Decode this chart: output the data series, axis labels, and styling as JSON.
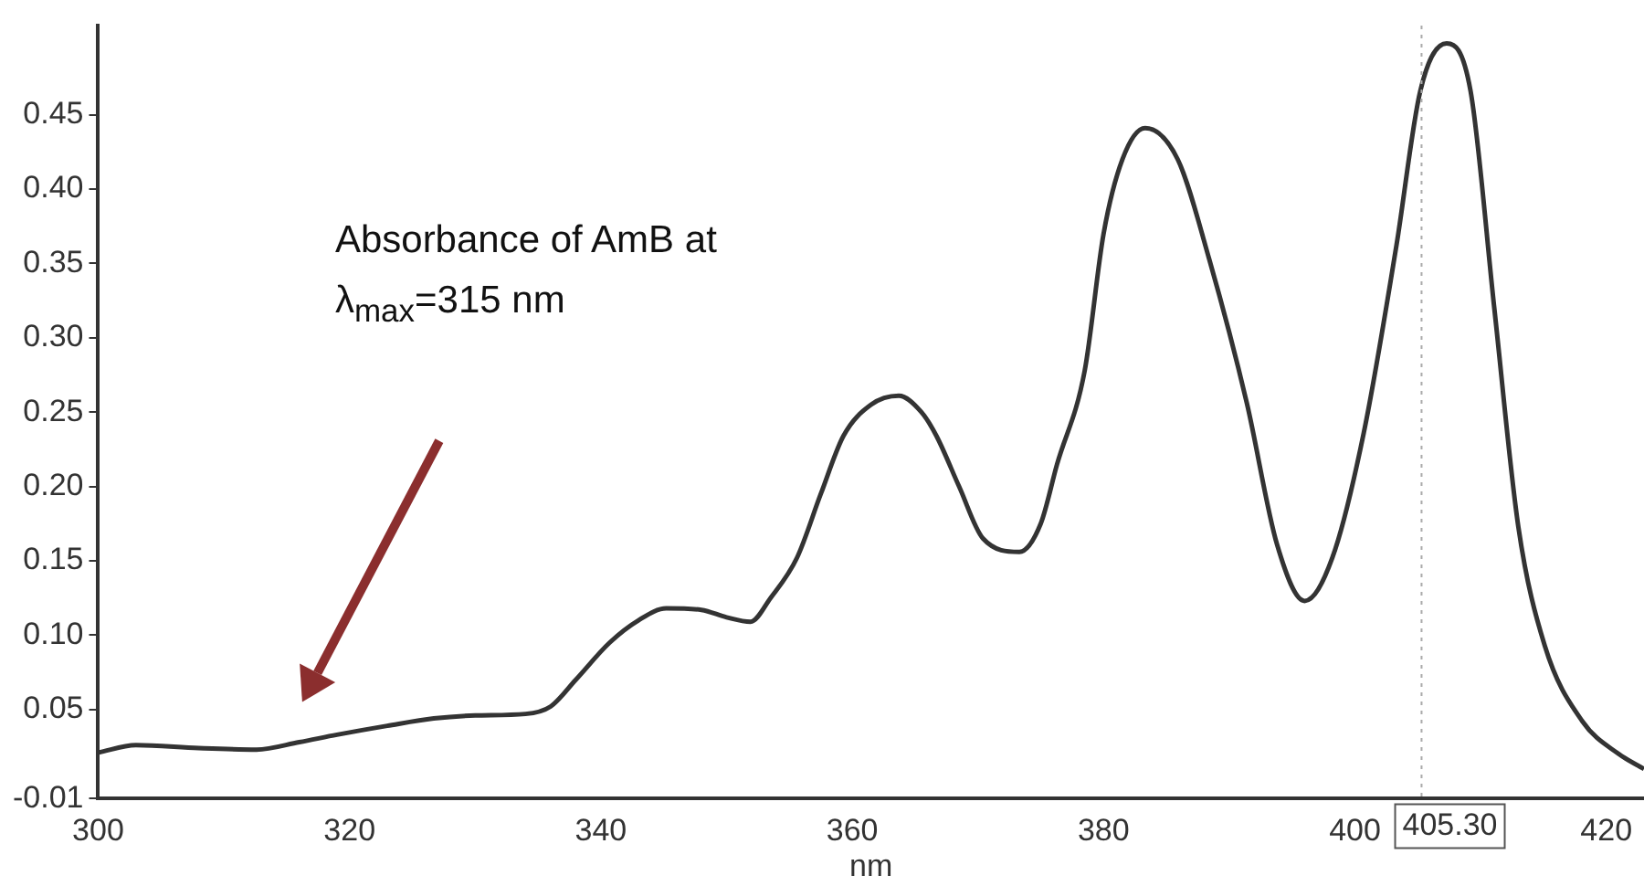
{
  "chart_data": {
    "type": "line",
    "xlabel": "nm",
    "series": [
      {
        "color": "#333333",
        "x": [
          300,
          303,
          308,
          312.6,
          316,
          319,
          323,
          326.7,
          330,
          334,
          336,
          338,
          340.7,
          343,
          345.2,
          348,
          350,
          351.9,
          353.5,
          355.6,
          357.5,
          359.3,
          361.5,
          363.7,
          365.5,
          366.7,
          368.5,
          370.4,
          373.3,
          375,
          376.3,
          378.5,
          380,
          381.5,
          383.3,
          385.9,
          388.4,
          391.4,
          393.8,
          396,
          398.2,
          400.7,
          403.3,
          405.2,
          407.3,
          409.2,
          411.1,
          413,
          415.1,
          418.1,
          421,
          423
        ],
        "values": [
          0.021,
          0.026,
          0.024,
          0.023,
          0.028,
          0.033,
          0.039,
          0.044,
          0.046,
          0.047,
          0.052,
          0.07,
          0.095,
          0.11,
          0.118,
          0.117,
          0.112,
          0.109,
          0.125,
          0.152,
          0.195,
          0.234,
          0.255,
          0.261,
          0.25,
          0.234,
          0.2,
          0.165,
          0.156,
          0.175,
          0.215,
          0.278,
          0.37,
          0.42,
          0.441,
          0.42,
          0.353,
          0.256,
          0.161,
          0.123,
          0.152,
          0.236,
          0.362,
          0.466,
          0.498,
          0.466,
          0.319,
          0.173,
          0.093,
          0.042,
          0.02,
          0.01
        ]
      }
    ],
    "xlim": [
      300,
      423
    ],
    "xticks": [
      300,
      320,
      340,
      360,
      380,
      400,
      420
    ],
    "ylim": [
      -0.01,
      0.51
    ],
    "yticks": [
      -0.01,
      {
        "value": 0.05,
        "label": "0.05"
      },
      {
        "value": 0.1,
        "label": "0.10"
      },
      {
        "value": 0.15,
        "label": "0.15"
      },
      {
        "value": 0.2,
        "label": "0.20"
      },
      {
        "value": 0.25,
        "label": "0.25"
      },
      {
        "value": 0.3,
        "label": "0.30"
      },
      {
        "value": 0.35,
        "label": "0.35"
      },
      {
        "value": 0.4,
        "label": "0.40"
      },
      {
        "value": 0.45,
        "label": "0.45"
      }
    ],
    "grid": false,
    "legend": false,
    "marker": "none",
    "line_style": "solid",
    "ref_lines": [
      {
        "axis": "x",
        "value": 405.3,
        "label": "405.30",
        "color": "#aaaaaa",
        "line_style": "dotted"
      }
    ],
    "annotations": [
      "Absorbance of AmB at λ$_{max}$=315 nm"
    ]
  }
}
